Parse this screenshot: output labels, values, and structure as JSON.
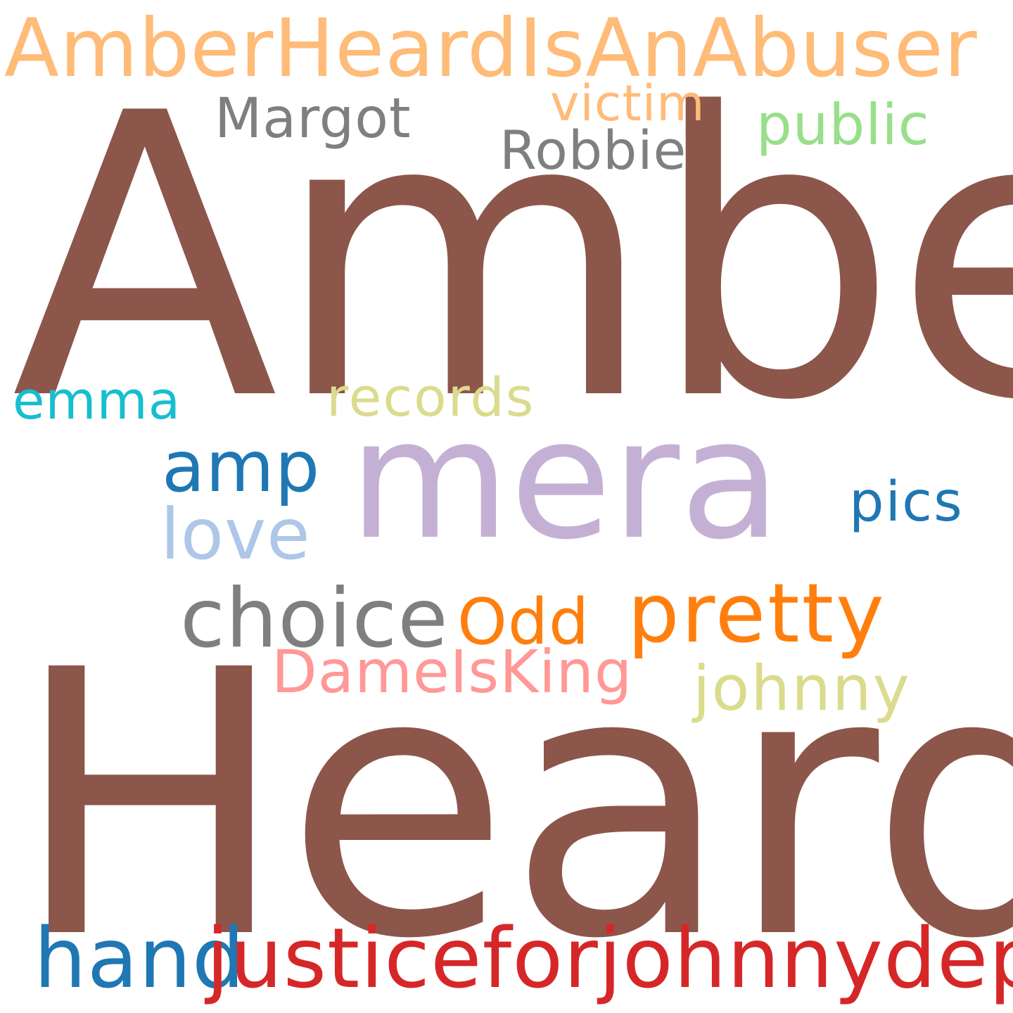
{
  "words": {
    "amberheardisanabuser": {
      "text": "AmberHeardIsAnAbuser",
      "color": "#ffbb78"
    },
    "victim": {
      "text": "victim",
      "color": "#ffbb78"
    },
    "margot": {
      "text": "Margot",
      "color": "#7f7f7f"
    },
    "public": {
      "text": "public",
      "color": "#98df8a"
    },
    "robbie": {
      "text": "Robbie",
      "color": "#7f7f7f"
    },
    "amber": {
      "text": "Amber",
      "color": "#8c564b"
    },
    "emma": {
      "text": "emma",
      "color": "#17becf"
    },
    "records": {
      "text": "records",
      "color": "#dbdb8d"
    },
    "mera": {
      "text": "mera",
      "color": "#c5b0d5"
    },
    "amp": {
      "text": "amp",
      "color": "#1f77b4"
    },
    "pics": {
      "text": "pics",
      "color": "#1f77b4"
    },
    "love": {
      "text": "love",
      "color": "#aec7e8"
    },
    "choice": {
      "text": "choice",
      "color": "#7f7f7f"
    },
    "odd": {
      "text": "Odd",
      "color": "#ff7f0e"
    },
    "pretty": {
      "text": "pretty",
      "color": "#ff7f0e"
    },
    "dameisking": {
      "text": "DameIsKing",
      "color": "#ff9896"
    },
    "johnny": {
      "text": "johnny",
      "color": "#dbdb8d"
    },
    "heard": {
      "text": "Heard",
      "color": "#8c564b"
    },
    "hand": {
      "text": "hand",
      "color": "#1f77b4"
    },
    "justiceforjohnnydepp": {
      "text": "justiceforjohnnydepp",
      "color": "#d62728"
    }
  },
  "background_color": "#ffffff"
}
